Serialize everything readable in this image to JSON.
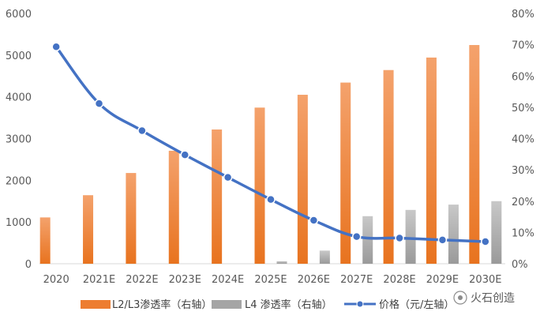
{
  "chart_data": {
    "type": "bar",
    "categories": [
      "2020",
      "2021E",
      "2022E",
      "2023E",
      "2024E",
      "2025E",
      "2026E",
      "2027E",
      "2028E",
      "2029E",
      "2030E"
    ],
    "left_axis": {
      "ylim": [
        0,
        6000
      ],
      "ticks": [
        "0",
        "1000",
        "2000",
        "3000",
        "4000",
        "5000",
        "6000"
      ]
    },
    "right_axis": {
      "ylim": [
        0,
        80
      ],
      "ticks": [
        "0%",
        "10%",
        "20%",
        "30%",
        "40%",
        "50%",
        "60%",
        "70%",
        "80%"
      ]
    },
    "series": [
      {
        "name": "L2/L3渗透率（右轴）",
        "kind": "bar",
        "axis": "right",
        "color": "#ED7D31",
        "values": [
          14.8,
          21.9,
          29.0,
          36.1,
          42.9,
          49.9,
          54.0,
          57.9,
          61.9,
          65.9,
          69.9
        ]
      },
      {
        "name": "L4 渗透率（右轴）",
        "kind": "bar",
        "axis": "right",
        "color": "#A5A5A5",
        "values": [
          0,
          0,
          0,
          0,
          0,
          0.8,
          4.2,
          15.2,
          17.2,
          18.9,
          20.0
        ]
      },
      {
        "name": "价格（元/左轴）",
        "kind": "line",
        "axis": "left",
        "color": "#4472C4",
        "values": [
          5200,
          3840,
          3190,
          2610,
          2070,
          1540,
          1040,
          650,
          615,
          570,
          530
        ]
      }
    ],
    "grid": false,
    "legend": "bottom"
  },
  "watermark": {
    "text": "火石创造"
  }
}
